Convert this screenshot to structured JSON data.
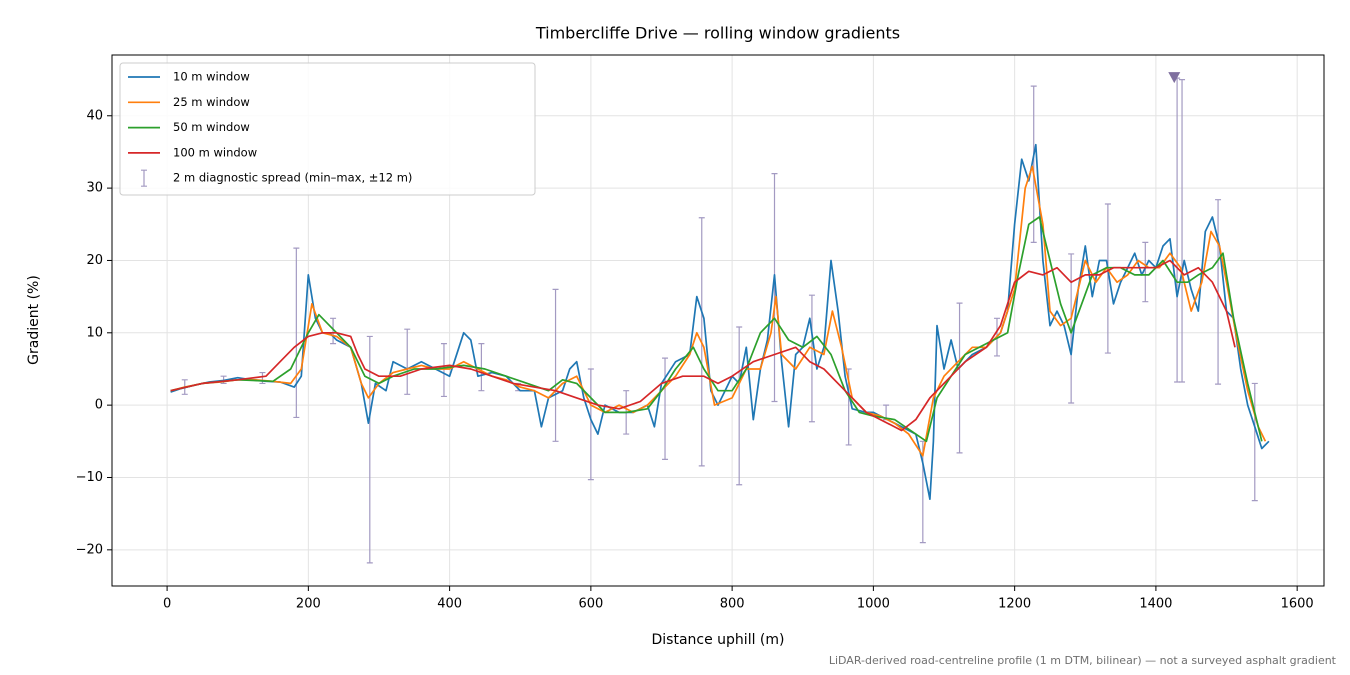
{
  "chart_data": {
    "type": "line",
    "title": "Timbercliffe Drive — rolling window gradients",
    "xlabel": "Distance uphill (m)",
    "ylabel": "Gradient (%)",
    "footnote": "LiDAR-derived road-centreline profile (1 m DTM, bilinear) — not a surveyed asphalt gradient",
    "xlim": [
      -78,
      1638
    ],
    "ylim": [
      -25,
      48.4
    ],
    "xticks": [
      0,
      200,
      400,
      600,
      800,
      1000,
      1200,
      1400,
      1600
    ],
    "yticks": [
      {
        "value": -20,
        "label": "−20"
      },
      {
        "value": -10,
        "label": "−10"
      },
      0,
      10,
      20,
      30,
      40
    ],
    "grid": true,
    "legend": "upper left",
    "series": [
      {
        "name": "10 m window",
        "color": "#1f77b4",
        "x": [
          5,
          20,
          40,
          60,
          80,
          100,
          120,
          140,
          160,
          180,
          190,
          200,
          210,
          220,
          230,
          240,
          260,
          275,
          285,
          295,
          310,
          320,
          340,
          360,
          380,
          400,
          420,
          430,
          440,
          460,
          480,
          500,
          520,
          530,
          540,
          560,
          570,
          580,
          590,
          600,
          610,
          620,
          640,
          660,
          680,
          690,
          700,
          720,
          740,
          750,
          760,
          770,
          780,
          790,
          800,
          810,
          820,
          830,
          840,
          850,
          860,
          870,
          880,
          890,
          900,
          910,
          920,
          930,
          940,
          950,
          960,
          970,
          990,
          1000,
          1020,
          1040,
          1060,
          1070,
          1080,
          1085,
          1090,
          1100,
          1110,
          1120,
          1140,
          1160,
          1180,
          1190,
          1200,
          1210,
          1220,
          1230,
          1240,
          1250,
          1260,
          1270,
          1280,
          1290,
          1300,
          1310,
          1320,
          1330,
          1340,
          1350,
          1360,
          1370,
          1380,
          1390,
          1400,
          1410,
          1420,
          1430,
          1440,
          1450,
          1460,
          1470,
          1480,
          1490,
          1500,
          1510,
          1520,
          1530,
          1540,
          1550,
          1560
        ],
        "values": [
          1.8,
          2.3,
          2.8,
          3.2,
          3.4,
          3.8,
          3.5,
          3.3,
          3.2,
          2.5,
          4,
          18,
          12,
          10,
          10,
          9,
          8,
          3,
          -2.5,
          3,
          2,
          6,
          5,
          6,
          5,
          4,
          10,
          9,
          4,
          4.5,
          4,
          2,
          2,
          -3,
          1,
          2,
          5,
          6,
          1,
          -2,
          -4,
          0,
          -1,
          -1,
          0,
          -3,
          3,
          6,
          7,
          15,
          12,
          2,
          0,
          2,
          4,
          3,
          8,
          -2,
          5,
          9,
          18,
          6,
          -3,
          7,
          8,
          12,
          5,
          8,
          20,
          13,
          4,
          -0.5,
          -1,
          -1,
          -2,
          -3,
          -4,
          -8,
          -13,
          -5,
          11,
          5,
          9,
          5,
          7,
          8,
          10,
          13,
          25,
          34,
          31,
          36,
          20,
          11,
          13,
          11,
          7,
          16,
          22,
          15,
          20,
          20,
          14,
          17,
          19,
          21,
          18,
          20,
          19,
          22,
          23,
          15,
          20,
          16,
          13,
          24,
          26,
          22,
          13,
          12,
          5,
          0,
          -3,
          -6,
          -5
        ]
      },
      {
        "name": "25 m window",
        "color": "#ff7f0e",
        "x": [
          5,
          25,
          50,
          75,
          100,
          125,
          150,
          175,
          190,
          205,
          220,
          240,
          260,
          275,
          285,
          300,
          320,
          340,
          360,
          380,
          400,
          420,
          440,
          460,
          480,
          500,
          520,
          540,
          560,
          580,
          600,
          620,
          640,
          660,
          680,
          700,
          720,
          740,
          750,
          760,
          775,
          800,
          820,
          840,
          855,
          862,
          870,
          890,
          910,
          930,
          942,
          955,
          970,
          990,
          1010,
          1030,
          1050,
          1070,
          1085,
          1100,
          1120,
          1140,
          1160,
          1180,
          1200,
          1215,
          1225,
          1240,
          1250,
          1265,
          1280,
          1290,
          1300,
          1315,
          1330,
          1345,
          1360,
          1375,
          1390,
          1405,
          1420,
          1435,
          1450,
          1465,
          1478,
          1490,
          1500,
          1515,
          1530,
          1545,
          1555
        ],
        "values": [
          2,
          2.5,
          3,
          3.2,
          3.5,
          3.5,
          3.3,
          3,
          5,
          14,
          10,
          9.5,
          8,
          3,
          1,
          3,
          4.5,
          5,
          5.5,
          5,
          5,
          6,
          5,
          4,
          3.5,
          2.5,
          2,
          1,
          3,
          4,
          0,
          -1,
          0,
          -1,
          0,
          2,
          4,
          7,
          10,
          8,
          0,
          1,
          5,
          5,
          10,
          15,
          7,
          5,
          8,
          7,
          13,
          8,
          1,
          -1,
          -1.5,
          -2.5,
          -4,
          -7,
          1,
          4,
          6,
          8,
          8,
          10,
          16,
          30,
          33,
          25,
          13,
          11,
          12,
          16,
          20,
          17,
          19,
          17,
          18,
          20,
          19,
          19,
          21,
          19,
          13,
          17,
          24,
          22,
          17,
          9,
          2,
          -3,
          -5
        ]
      },
      {
        "name": "50 m window",
        "color": "#2ca02c",
        "x": [
          5,
          50,
          100,
          150,
          175,
          200,
          215,
          240,
          260,
          280,
          300,
          320,
          350,
          380,
          420,
          450,
          480,
          510,
          540,
          560,
          580,
          600,
          620,
          650,
          680,
          700,
          720,
          745,
          760,
          780,
          800,
          820,
          840,
          860,
          880,
          900,
          920,
          940,
          960,
          980,
          1000,
          1030,
          1060,
          1075,
          1090,
          1110,
          1130,
          1150,
          1170,
          1190,
          1205,
          1220,
          1235,
          1250,
          1265,
          1280,
          1295,
          1310,
          1330,
          1350,
          1370,
          1390,
          1410,
          1430,
          1445,
          1460,
          1480,
          1495,
          1510,
          1530,
          1550
        ],
        "values": [
          2,
          3,
          3.5,
          3.3,
          5,
          10,
          12.5,
          10,
          8,
          4,
          3,
          4,
          5,
          5,
          5.5,
          5,
          4,
          3,
          2,
          3.5,
          3,
          1,
          -1,
          -1,
          -0.5,
          2,
          5,
          8,
          5,
          2,
          2,
          5,
          10,
          12,
          9,
          8,
          9.5,
          7,
          2,
          -1,
          -1.5,
          -2,
          -4,
          -5,
          1,
          4,
          7,
          8,
          9,
          10,
          18,
          25,
          26,
          20,
          14,
          10,
          14,
          18,
          19,
          19,
          18,
          18,
          20,
          17,
          17,
          18,
          19,
          21,
          12,
          3,
          -5
        ]
      },
      {
        "name": "100 m window",
        "color": "#d62728",
        "x": [
          5,
          50,
          100,
          140,
          160,
          180,
          200,
          220,
          240,
          260,
          270,
          280,
          300,
          330,
          360,
          400,
          430,
          460,
          490,
          520,
          550,
          580,
          610,
          640,
          670,
          700,
          730,
          760,
          780,
          800,
          830,
          860,
          890,
          910,
          930,
          960,
          990,
          1020,
          1040,
          1060,
          1080,
          1100,
          1130,
          1160,
          1180,
          1200,
          1220,
          1240,
          1260,
          1280,
          1300,
          1320,
          1340,
          1370,
          1400,
          1420,
          1440,
          1460,
          1480,
          1500,
          1512
        ],
        "values": [
          2,
          3,
          3.5,
          4,
          6,
          8,
          9.5,
          10,
          10,
          9.5,
          7,
          5,
          4,
          4,
          5,
          5.5,
          5,
          4,
          3,
          2.5,
          2,
          1,
          0,
          -0.5,
          0.5,
          3,
          4,
          4,
          3,
          4,
          6,
          7,
          8,
          6,
          5,
          2,
          -1,
          -2.5,
          -3.5,
          -2,
          1,
          3,
          6,
          8,
          11,
          17,
          18.5,
          18,
          19,
          17,
          18,
          18,
          19,
          19,
          19,
          20,
          18,
          19,
          17,
          13,
          8
        ]
      }
    ],
    "errorbars": {
      "name": "2 m diagnostic spread (min–max, ±12 m)",
      "color": "#a39ac2",
      "x": [
        25,
        80,
        135,
        183,
        235,
        287,
        340,
        392,
        445,
        497,
        550,
        600,
        650,
        705,
        757,
        810,
        860,
        913,
        965,
        1018,
        1070,
        1122,
        1175,
        1227,
        1280,
        1332,
        1385,
        1430,
        1437,
        1488,
        1540
      ],
      "low": [
        1.5,
        3,
        3,
        -1.7,
        8.5,
        -21.8,
        1.5,
        1.2,
        2,
        2,
        -5,
        -10.3,
        -4,
        -7.5,
        -8.4,
        -11,
        0.5,
        -2.3,
        -5.5,
        -2,
        -19,
        -6.6,
        6.8,
        22.5,
        0.3,
        7.2,
        14.3,
        3.2,
        3.2,
        2.9,
        -13.2
      ],
      "high": [
        3.5,
        4,
        4.5,
        21.7,
        12,
        9.5,
        10.5,
        8.5,
        8.5,
        3,
        16,
        5,
        2,
        6.5,
        25.9,
        10.8,
        32,
        15.2,
        5,
        0,
        -5,
        14.1,
        12,
        44.1,
        20.9,
        27.8,
        22.5,
        45.2,
        45,
        28.4,
        3
      ]
    },
    "marker": {
      "x": 1426,
      "y": 45.2,
      "color": "#7f6f9f"
    }
  }
}
